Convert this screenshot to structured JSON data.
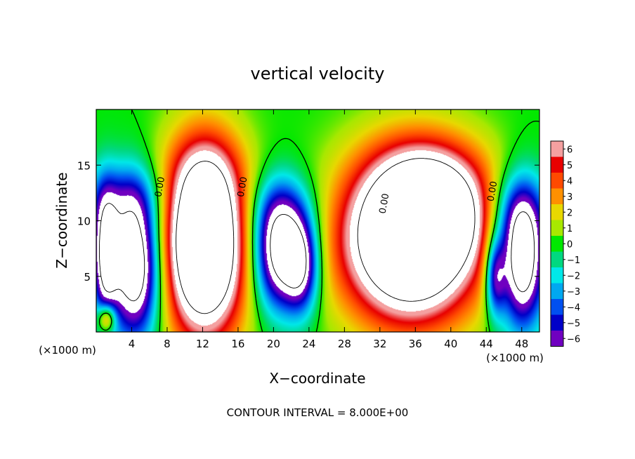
{
  "chart_data": {
    "type": "heatmap",
    "title": "vertical velocity",
    "xlabel": "X−coordinate",
    "ylabel": "Z−coordinate",
    "x_unit_left": "(×1000 m)",
    "x_unit_right": "(×1000 m)",
    "footer": "CONTOUR INTERVAL = 8.000E+00",
    "xlim": [
      0,
      50
    ],
    "ylim": [
      0,
      20
    ],
    "x_ticks": [
      4,
      8,
      12,
      16,
      20,
      24,
      28,
      32,
      36,
      40,
      44,
      48
    ],
    "x_tick_labels": [
      "4",
      "8",
      "12",
      "16",
      "20",
      "24",
      "28",
      "32",
      "36",
      "40",
      "44",
      "48"
    ],
    "y_ticks": [
      5,
      10,
      15
    ],
    "y_tick_labels": [
      "5",
      "10",
      "15"
    ],
    "zero_contour_label": "0.00",
    "zero_contour_labels": [
      {
        "x": 7.5,
        "y": 13.0,
        "text": "0.00"
      },
      {
        "x": 16.8,
        "y": 13.0,
        "text": "0.00"
      },
      {
        "x": 32.8,
        "y": 11.5,
        "text": "0.00"
      },
      {
        "x": 45.0,
        "y": 12.6,
        "text": "0.00"
      }
    ],
    "colorbar": {
      "values": [
        6,
        5,
        4,
        3,
        2,
        1,
        0,
        -1,
        -2,
        -3,
        -4,
        -5,
        -6
      ],
      "labels": [
        "6",
        "5",
        "4",
        "3",
        "2",
        "1",
        "0",
        "−1",
        "−2",
        "−3",
        "−4",
        "−5",
        "−6"
      ],
      "colors": [
        "#f4a0a0",
        "#e80000",
        "#ff4a00",
        "#ff9000",
        "#e8d800",
        "#a8e800",
        "#00e800",
        "#00d880",
        "#00e8e8",
        "#00a8f0",
        "#0050f0",
        "#0000c8",
        "#7000c0"
      ]
    },
    "features": [
      {
        "kind": "updraft",
        "x": 12.2,
        "z": 8.0,
        "sx": 3.3,
        "sz": 6.0,
        "amp": 14
      },
      {
        "kind": "updraft",
        "x": 35.5,
        "z": 8.3,
        "sx": 5.5,
        "sz": 5.2,
        "amp": 14
      },
      {
        "kind": "updraft",
        "x": 39.0,
        "z": 11.0,
        "sx": 4.2,
        "sz": 3.0,
        "amp": 4
      },
      {
        "kind": "updraft",
        "x": 37.5,
        "z": 14.5,
        "sx": 5.0,
        "sz": 3.0,
        "amp": 2
      },
      {
        "kind": "updraft",
        "x": 12.5,
        "z": 14.5,
        "sx": 3.0,
        "sz": 2.5,
        "amp": 1.5
      },
      {
        "kind": "updraft",
        "x": 1.2,
        "z": 1.2,
        "sx": 0.7,
        "sz": 0.9,
        "amp": 6
      },
      {
        "kind": "downdraft",
        "x": 4.4,
        "z": 6.0,
        "sx": 2.0,
        "sz": 4.5,
        "amp": 11
      },
      {
        "kind": "downdraft",
        "x": 1.0,
        "z": 7.0,
        "sx": 1.0,
        "sz": 4.0,
        "amp": 8
      },
      {
        "kind": "downdraft",
        "x": 20.5,
        "z": 7.0,
        "sx": 2.0,
        "sz": 3.5,
        "amp": 9
      },
      {
        "kind": "downdraft",
        "x": 23.2,
        "z": 6.0,
        "sx": 1.4,
        "sz": 3.0,
        "amp": 7
      },
      {
        "kind": "downdraft",
        "x": 48.0,
        "z": 6.5,
        "sx": 1.8,
        "sz": 4.2,
        "amp": 11
      },
      {
        "kind": "downdraft",
        "x": 45.0,
        "z": 5.0,
        "sx": 0.8,
        "sz": 2.5,
        "amp": 6
      },
      {
        "kind": "downdraft",
        "x": 3.0,
        "z": 12.0,
        "sx": 3.0,
        "sz": 2.2,
        "amp": 3
      },
      {
        "kind": "downdraft",
        "x": 21.0,
        "z": 11.0,
        "sx": 2.5,
        "sz": 2.5,
        "amp": 3
      },
      {
        "kind": "downdraft",
        "x": 47.5,
        "z": 11.0,
        "sx": 2.5,
        "sz": 2.5,
        "amp": 3
      }
    ]
  }
}
